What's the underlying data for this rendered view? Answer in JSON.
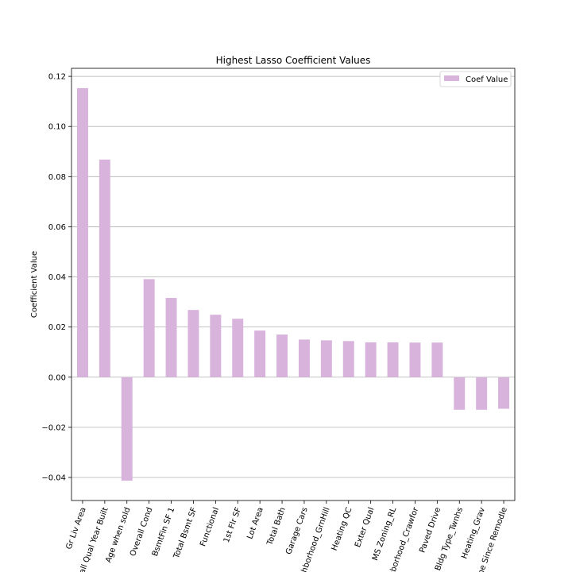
{
  "chart_data": {
    "type": "bar",
    "title": "Highest Lasso Coefficient Values",
    "xlabel": "",
    "ylabel": "Coefficient Value",
    "categories": [
      "Gr Liv Area",
      "Overall Qual Year Built",
      "Age when sold",
      "Overall Cond",
      "BsmtFin SF 1",
      "Total Bsmt SF",
      "Functional",
      "1st Flr SF",
      "Lot Area",
      "Total Bath",
      "Garage Cars",
      "Neighborhood_GrnHill",
      "Heating QC",
      "Exter Qual",
      "MS Zoning_RL",
      "Neighborhood_Crawfor",
      "Paved Drive",
      "Bldg Type_Twnhs",
      "Heating_Grav",
      "Time Since Remodle"
    ],
    "series": [
      {
        "name": "Coef Value",
        "values": [
          0.1153,
          0.0868,
          -0.0413,
          0.0391,
          0.0316,
          0.0268,
          0.0249,
          0.0233,
          0.0186,
          0.017,
          0.015,
          0.0147,
          0.0144,
          0.0139,
          0.0139,
          0.0138,
          0.0138,
          -0.013,
          -0.013,
          -0.0126
        ]
      }
    ],
    "ylim": [
      -0.0492,
      0.1232
    ],
    "yticks": [
      "0.12",
      "0.10",
      "0.08",
      "0.06",
      "0.04",
      "0.02",
      "0.00",
      "−0.02",
      "−0.04"
    ],
    "ytick_values": [
      0.12,
      0.1,
      0.08,
      0.06,
      0.04,
      0.02,
      0.0,
      -0.02,
      -0.04
    ],
    "grid": true,
    "legend_position": "top-right",
    "colors": {
      "bar": "#d8b3dc",
      "grid": "#b0b0b0",
      "axis": "#000000"
    }
  }
}
